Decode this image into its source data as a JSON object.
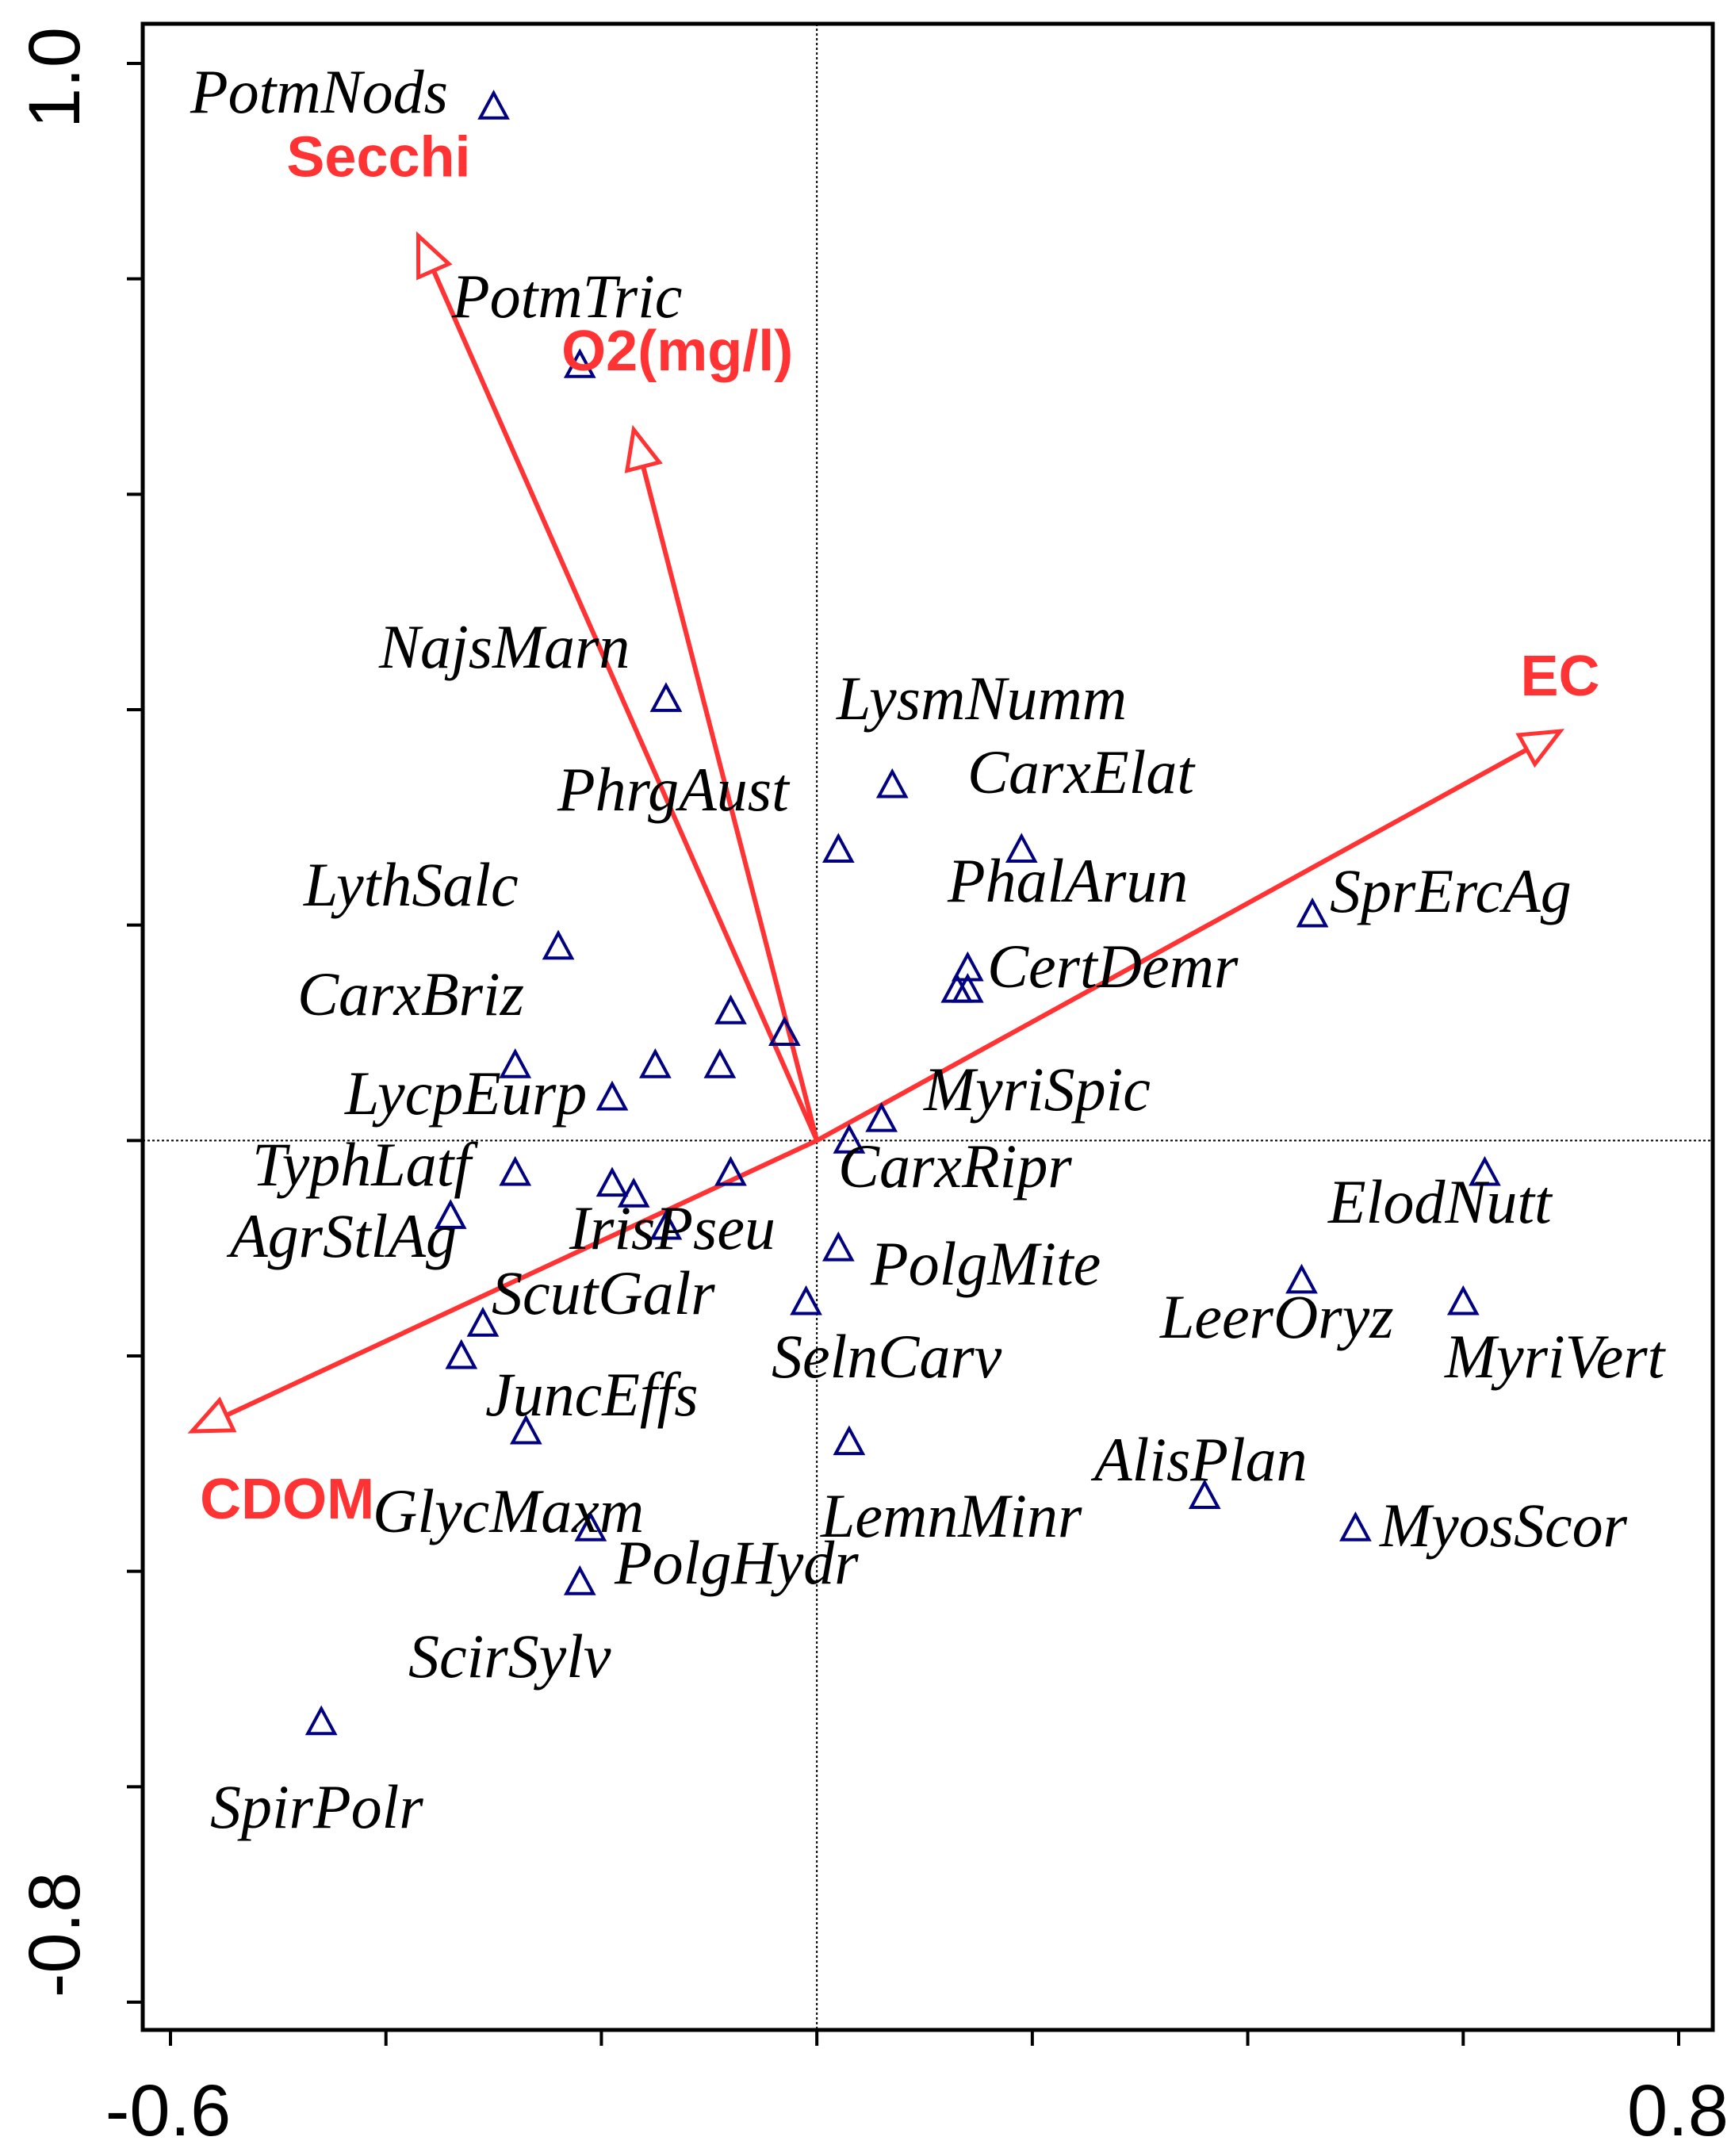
{
  "chart_data": {
    "type": "scatter",
    "xlim": [
      -0.6,
      0.8
    ],
    "ylim": [
      -0.8,
      1.0
    ],
    "tick_labels": {
      "x": [
        "-0.6",
        "0.8"
      ],
      "y": [
        "1.0",
        "-0.8"
      ]
    },
    "grid": false,
    "axis_color": "#000000",
    "origin_lines": "dotted",
    "marker": {
      "shape": "open-triangle",
      "color": "#000080"
    },
    "arrow_color": "#ff3333",
    "environmental_variables": [
      {
        "label": "Secchi",
        "x": -0.37,
        "y": 0.84
      },
      {
        "label": "O2(mg/l)",
        "x": -0.17,
        "y": 0.66
      },
      {
        "label": "EC",
        "x": 0.69,
        "y": 0.38
      },
      {
        "label": "CDOM",
        "x": -0.58,
        "y": -0.27
      }
    ],
    "species": [
      {
        "label": "PotmNods",
        "x": -0.3,
        "y": 0.96
      },
      {
        "label": "PotmTric",
        "x": -0.22,
        "y": 0.72
      },
      {
        "label": "NajsMarn",
        "x": -0.14,
        "y": 0.41
      },
      {
        "label": "LysmNumm",
        "x": 0.07,
        "y": 0.33
      },
      {
        "label": "CarxElat",
        "x": 0.19,
        "y": 0.27
      },
      {
        "label": "PhrgAust",
        "x": 0.02,
        "y": 0.27
      },
      {
        "label": "SprErcAg",
        "x": 0.46,
        "y": 0.21
      },
      {
        "label": "LythSalc",
        "x": -0.24,
        "y": 0.18
      },
      {
        "label": "PhalArun",
        "x": 0.14,
        "y": 0.16
      },
      {
        "label": "CertDemr",
        "x": 0.13,
        "y": 0.14
      },
      {
        "label": "",
        "x": 0.14,
        "y": 0.14
      },
      {
        "label": "",
        "x": -0.08,
        "y": 0.12
      },
      {
        "label": "",
        "x": -0.03,
        "y": 0.1
      },
      {
        "label": "CarxBriz",
        "x": -0.28,
        "y": 0.07
      },
      {
        "label": "",
        "x": -0.15,
        "y": 0.07
      },
      {
        "label": "",
        "x": -0.09,
        "y": 0.07
      },
      {
        "label": "LycpEurp",
        "x": -0.19,
        "y": 0.04
      },
      {
        "label": "MyriSpic",
        "x": 0.06,
        "y": 0.02
      },
      {
        "label": "CarxRipr",
        "x": 0.03,
        "y": 0.0
      },
      {
        "label": "TyphLatf",
        "x": -0.28,
        "y": -0.03
      },
      {
        "label": "",
        "x": -0.19,
        "y": -0.04
      },
      {
        "label": "",
        "x": -0.17,
        "y": -0.05
      },
      {
        "label": "",
        "x": -0.08,
        "y": -0.03
      },
      {
        "label": "ElodNutt",
        "x": 0.62,
        "y": -0.03
      },
      {
        "label": "AgrStlAg",
        "x": -0.34,
        "y": -0.07
      },
      {
        "label": "IrisPseu",
        "x": -0.14,
        "y": -0.08
      },
      {
        "label": "PolgMite",
        "x": 0.02,
        "y": -0.1
      },
      {
        "label": "LeerOryz",
        "x": 0.45,
        "y": -0.13
      },
      {
        "label": "ScutGalr",
        "x": -0.31,
        "y": -0.17
      },
      {
        "label": "SelnCarv",
        "x": -0.01,
        "y": -0.15
      },
      {
        "label": "MyriVert",
        "x": 0.6,
        "y": -0.15
      },
      {
        "label": "JuncEffs",
        "x": -0.33,
        "y": -0.2
      },
      {
        "label": "GlycMaxm",
        "x": -0.27,
        "y": -0.27
      },
      {
        "label": "LemnMinr",
        "x": 0.03,
        "y": -0.28
      },
      {
        "label": "AlisPlan",
        "x": 0.36,
        "y": -0.33
      },
      {
        "label": "MyosScor",
        "x": 0.5,
        "y": -0.36
      },
      {
        "label": "PolgHydr",
        "x": -0.21,
        "y": -0.36
      },
      {
        "label": "ScirSylv",
        "x": -0.22,
        "y": -0.41
      },
      {
        "label": "SpirPolr",
        "x": -0.46,
        "y": -0.54
      }
    ]
  }
}
